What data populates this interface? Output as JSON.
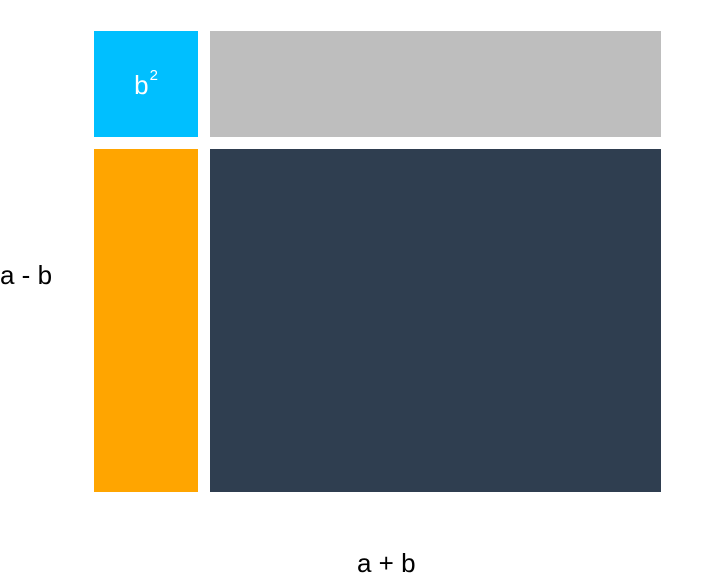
{
  "diagram": {
    "blocks": {
      "b_squared": {
        "base": "b",
        "exponent": "2",
        "color": "#00BFFF",
        "text_color": "#ffffff"
      },
      "top_right": {
        "color": "#BEBEBE"
      },
      "left": {
        "color": "#FFA500"
      },
      "main": {
        "color": "#2F3E50"
      }
    },
    "labels": {
      "side": "a - b",
      "bottom": "a + b"
    }
  }
}
